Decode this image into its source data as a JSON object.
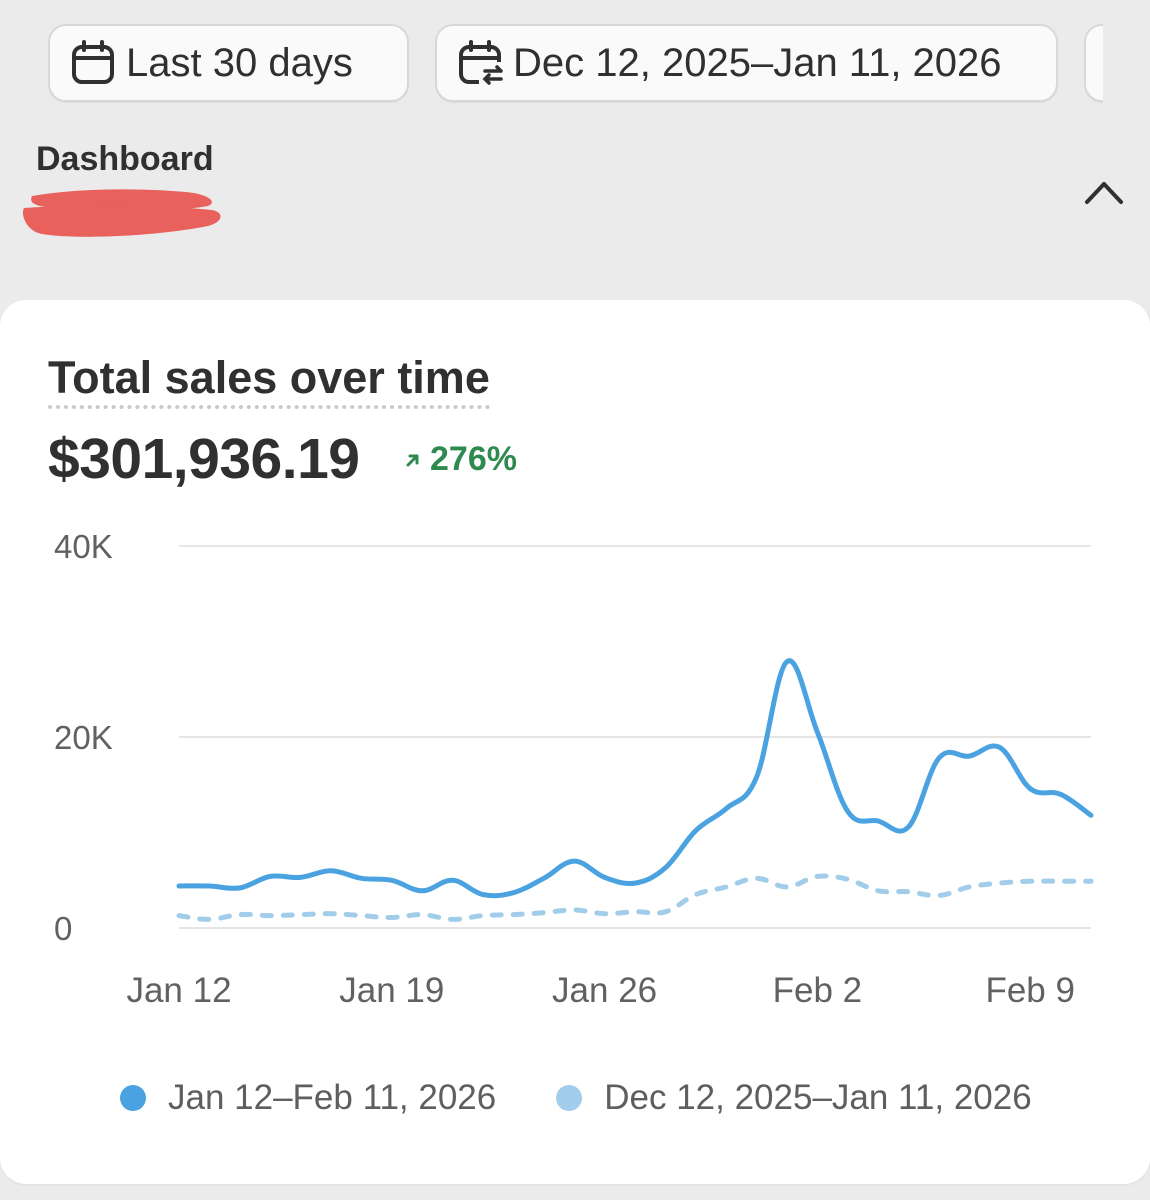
{
  "filters": {
    "date_range_label": "Last 30 days",
    "compare_range_label": "Dec 12, 2025–Jan 11, 2026",
    "date_range_icon": "calendar-icon",
    "compare_icon": "calendar-compare-icon"
  },
  "header": {
    "title": "Dashboard",
    "collapse_icon": "chevron-up-icon"
  },
  "card": {
    "title": "Total sales over time",
    "total": "$301,936.19",
    "change": "276%",
    "change_color": "#2f8a4f"
  },
  "colors": {
    "current_series": "#4aa3e0",
    "previous_series": "#a2cdea",
    "gridline": "#e5e5e5",
    "redaction": "#e8615c"
  },
  "chart_data": {
    "type": "line",
    "title": "Total sales over time",
    "xlabel": "",
    "ylabel": "",
    "ylim": [
      0,
      40000
    ],
    "y_ticks": [
      0,
      20000,
      40000
    ],
    "y_tick_labels": [
      "0",
      "20K",
      "40K"
    ],
    "x_tick_labels": [
      "Jan 12",
      "Jan 19",
      "Jan 26",
      "Feb 2",
      "Feb 9"
    ],
    "x_tick_days": [
      0,
      7,
      14,
      21,
      28
    ],
    "x_days_total": 30,
    "grid": true,
    "legend_position": "bottom",
    "series": [
      {
        "name": "Jan 12–Feb 11, 2026",
        "style": "solid",
        "values": [
          4400,
          4400,
          4200,
          5400,
          5300,
          6000,
          5200,
          5000,
          3900,
          5000,
          3500,
          3700,
          5200,
          7000,
          5300,
          4700,
          6300,
          10200,
          12500,
          15800,
          27900,
          20500,
          12200,
          11200,
          10600,
          17800,
          18000,
          18900,
          14600,
          14000,
          11800
        ]
      },
      {
        "name": "Dec 12, 2025–Jan 11, 2026",
        "style": "dashed",
        "values": [
          1300,
          900,
          1400,
          1300,
          1400,
          1500,
          1300,
          1100,
          1400,
          900,
          1300,
          1400,
          1600,
          1900,
          1500,
          1700,
          1700,
          3500,
          4300,
          5200,
          4300,
          5400,
          5100,
          3900,
          3800,
          3400,
          4300,
          4700,
          4900,
          4900,
          4900
        ]
      }
    ]
  }
}
